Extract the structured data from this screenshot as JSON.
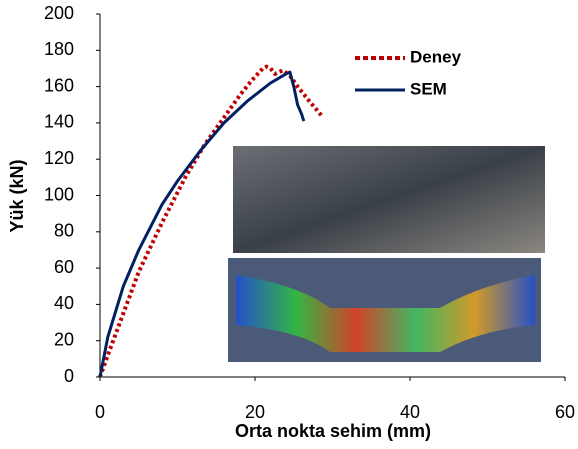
{
  "chart_data": {
    "type": "line",
    "x_label": "Orta nokta sehim (mm)",
    "y_label": "Yük (kN)",
    "xlim": [
      0,
      60
    ],
    "ylim": [
      0,
      200
    ],
    "xticks": [
      0,
      20,
      40,
      60
    ],
    "yticks": [
      0,
      20,
      40,
      60,
      80,
      100,
      120,
      140,
      160,
      180,
      200
    ],
    "legend": "upper right",
    "series": [
      {
        "name": "Deney",
        "color": "#c00000",
        "dash": true,
        "x": [
          0,
          1,
          3,
          5,
          8,
          11,
          13.5,
          16,
          18,
          19.5,
          21,
          21.5,
          22,
          22.6,
          23.6,
          24.5,
          25.5,
          27,
          28.8
        ],
        "values": [
          0,
          12,
          35,
          58,
          85,
          110,
          128,
          143,
          155,
          163,
          170,
          171,
          170,
          167,
          169,
          166,
          160,
          152,
          143
        ]
      },
      {
        "name": "SEM",
        "color": "#002060",
        "dash": false,
        "x": [
          0,
          1,
          3,
          5,
          8,
          10,
          13,
          16,
          19,
          22,
          24,
          24.5,
          25,
          25.5,
          26,
          26.3
        ],
        "values": [
          0,
          22,
          50,
          70,
          95,
          108,
          125,
          140,
          152,
          162,
          167,
          168,
          160,
          150,
          145,
          141
        ]
      }
    ]
  }
}
